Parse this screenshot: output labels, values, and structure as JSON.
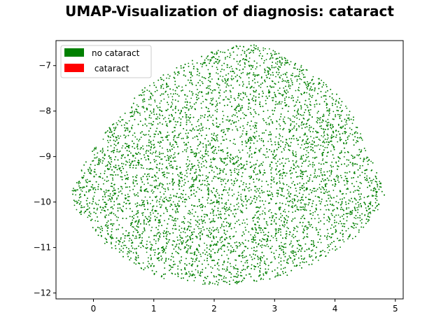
{
  "chart_data": {
    "type": "scatter",
    "title": "UMAP-Visualization of diagnosis: cataract",
    "xlabel": "",
    "ylabel": "",
    "xlim": [
      -0.62,
      5.13
    ],
    "ylim": [
      -12.13,
      -6.45
    ],
    "xticks": [
      0,
      1,
      2,
      3,
      4,
      5
    ],
    "yticks": [
      -12,
      -11,
      -10,
      -9,
      -8,
      -7
    ],
    "grid": false,
    "legend_position": "top-left",
    "series": [
      {
        "name": "no cataract",
        "color": "#008000",
        "approx_points": 9000
      },
      {
        "name": " cataract",
        "color": "#ff0000",
        "approx_points": 0
      }
    ],
    "cloud_outline": [
      [
        -0.38,
        -9.78
      ],
      [
        -0.25,
        -9.45
      ],
      [
        -0.15,
        -9.15
      ],
      [
        0.05,
        -8.75
      ],
      [
        0.25,
        -8.35
      ],
      [
        0.5,
        -8.05
      ],
      [
        0.75,
        -7.55
      ],
      [
        1.1,
        -7.25
      ],
      [
        1.5,
        -6.95
      ],
      [
        1.95,
        -6.68
      ],
      [
        2.4,
        -6.55
      ],
      [
        2.75,
        -6.5
      ],
      [
        3.05,
        -6.7
      ],
      [
        3.4,
        -6.95
      ],
      [
        3.75,
        -7.25
      ],
      [
        4.05,
        -7.65
      ],
      [
        4.3,
        -8.1
      ],
      [
        4.45,
        -8.55
      ],
      [
        4.6,
        -9.05
      ],
      [
        4.75,
        -9.55
      ],
      [
        4.82,
        -9.85
      ],
      [
        4.72,
        -10.15
      ],
      [
        4.55,
        -10.45
      ],
      [
        4.35,
        -10.75
      ],
      [
        4.05,
        -11.05
      ],
      [
        3.65,
        -11.35
      ],
      [
        3.2,
        -11.62
      ],
      [
        2.7,
        -11.75
      ],
      [
        2.2,
        -11.82
      ],
      [
        1.7,
        -11.82
      ],
      [
        1.2,
        -11.7
      ],
      [
        0.75,
        -11.45
      ],
      [
        0.35,
        -11.1
      ],
      [
        0.05,
        -10.75
      ],
      [
        -0.2,
        -10.35
      ],
      [
        -0.35,
        -10.05
      ]
    ]
  }
}
